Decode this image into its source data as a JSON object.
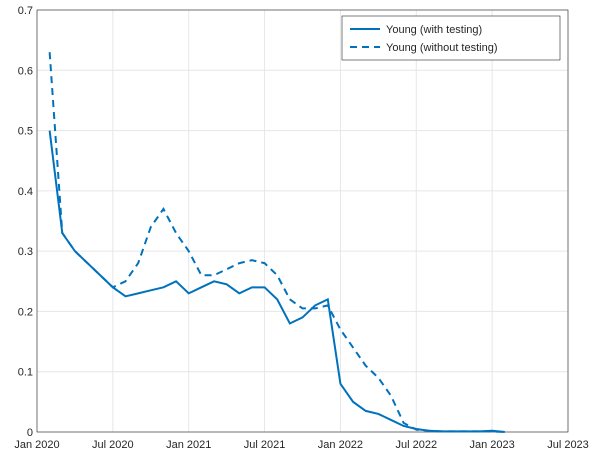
{
  "chart_data": {
    "type": "line",
    "x": [
      "2020-02",
      "2020-03",
      "2020-04",
      "2020-05",
      "2020-06",
      "2020-07",
      "2020-08",
      "2020-09",
      "2020-10",
      "2020-11",
      "2020-12",
      "2021-01",
      "2021-02",
      "2021-03",
      "2021-04",
      "2021-05",
      "2021-06",
      "2021-07",
      "2021-08",
      "2021-09",
      "2021-10",
      "2021-11",
      "2021-12",
      "2022-01",
      "2022-02",
      "2022-03",
      "2022-04",
      "2022-05",
      "2022-06",
      "2022-07",
      "2022-08",
      "2022-09",
      "2022-10",
      "2022-11",
      "2022-12",
      "2023-01",
      "2023-02"
    ],
    "series": [
      {
        "name": "Young (with testing)",
        "color": "#0072bd",
        "dash": false,
        "values": [
          0.5,
          0.33,
          0.3,
          0.28,
          0.26,
          0.24,
          0.225,
          0.23,
          0.235,
          0.24,
          0.25,
          0.23,
          0.24,
          0.25,
          0.245,
          0.23,
          0.24,
          0.24,
          0.22,
          0.18,
          0.19,
          0.21,
          0.22,
          0.08,
          0.05,
          0.035,
          0.03,
          0.02,
          0.01,
          0.005,
          0.002,
          0.001,
          0.001,
          0.001,
          0.001,
          0.002,
          0
        ]
      },
      {
        "name": "Young (without testing)",
        "color": "#0072bd",
        "dash": true,
        "values": [
          0.63,
          0.33,
          0.3,
          0.28,
          0.26,
          0.24,
          0.25,
          0.28,
          0.34,
          0.37,
          0.33,
          0.3,
          0.26,
          0.26,
          0.27,
          0.28,
          0.285,
          0.28,
          0.26,
          0.22,
          0.205,
          0.205,
          0.21,
          0.17,
          0.14,
          0.11,
          0.09,
          0.06,
          0.015,
          0.004,
          0.002,
          0.001,
          0.001,
          0.001,
          0.001,
          0.001,
          0
        ]
      }
    ],
    "xlim": [
      "2020-01",
      "2023-07"
    ],
    "xticks": [
      {
        "value": "2020-01",
        "label": "Jan 2020"
      },
      {
        "value": "2020-07",
        "label": "Jul 2020"
      },
      {
        "value": "2021-01",
        "label": "Jan 2021"
      },
      {
        "value": "2021-07",
        "label": "Jul 2021"
      },
      {
        "value": "2022-01",
        "label": "Jan 2022"
      },
      {
        "value": "2022-07",
        "label": "Jul 2022"
      },
      {
        "value": "2023-01",
        "label": "Jan 2023"
      },
      {
        "value": "2023-07",
        "label": "Jul 2023"
      }
    ],
    "ylim": [
      0,
      0.7
    ],
    "yticks": [
      0,
      0.1,
      0.2,
      0.3,
      0.4,
      0.5,
      0.6,
      0.7
    ],
    "grid": true,
    "legend": "northeast"
  }
}
